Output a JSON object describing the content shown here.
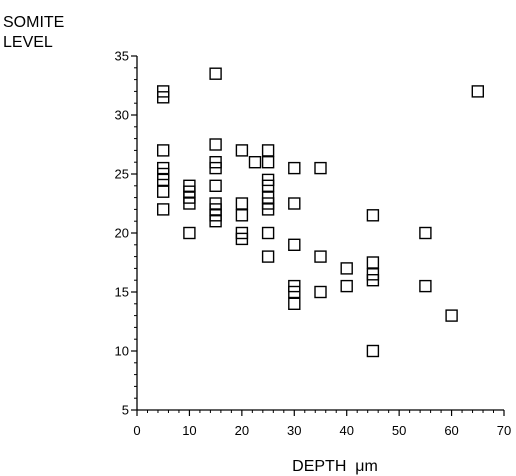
{
  "chart_data": {
    "type": "scatter",
    "ylabel_lines": [
      "SOMITE",
      "LEVEL"
    ],
    "xlabel": "DEPTH  μm",
    "xlim": [
      0,
      70
    ],
    "ylim": [
      5,
      35
    ],
    "x_ticks": [
      0,
      10,
      20,
      30,
      40,
      50,
      60,
      70
    ],
    "y_ticks": [
      5,
      10,
      15,
      20,
      25,
      30,
      35
    ],
    "x_tick_labels": [
      "0",
      "10",
      "20",
      "30",
      "40",
      "50",
      "60",
      "70"
    ],
    "y_tick_labels": [
      "5",
      "10",
      "15",
      "20",
      "25",
      "30",
      "35"
    ],
    "x_minor_step": 2,
    "y_minor_step": 1,
    "marker": "open-square",
    "series": [
      {
        "points": [
          [
            5,
            32
          ],
          [
            5,
            31.5
          ],
          [
            5,
            27
          ],
          [
            5,
            25.5
          ],
          [
            5,
            25
          ],
          [
            5,
            24.5
          ],
          [
            5,
            23.5
          ],
          [
            5,
            22
          ],
          [
            10,
            24
          ],
          [
            10,
            23.5
          ],
          [
            10,
            23
          ],
          [
            10,
            22.5
          ],
          [
            10,
            20
          ],
          [
            15,
            33.5
          ],
          [
            15,
            27.5
          ],
          [
            15,
            26
          ],
          [
            15,
            25.5
          ],
          [
            15,
            24
          ],
          [
            15,
            22.5
          ],
          [
            15,
            22
          ],
          [
            15,
            21.5
          ],
          [
            15,
            21
          ],
          [
            20,
            27
          ],
          [
            20,
            22.5
          ],
          [
            20,
            21.5
          ],
          [
            20,
            20
          ],
          [
            20,
            19.5
          ],
          [
            22.5,
            26
          ],
          [
            25,
            27
          ],
          [
            25,
            26
          ],
          [
            25,
            24.5
          ],
          [
            25,
            24
          ],
          [
            25,
            23
          ],
          [
            25,
            22.5
          ],
          [
            25,
            22
          ],
          [
            25,
            20
          ],
          [
            25,
            18
          ],
          [
            30,
            25.5
          ],
          [
            30,
            22.5
          ],
          [
            30,
            19
          ],
          [
            30,
            15.5
          ],
          [
            30,
            15
          ],
          [
            30,
            14
          ],
          [
            35,
            25.5
          ],
          [
            35,
            18
          ],
          [
            35,
            15
          ],
          [
            40,
            17
          ],
          [
            40,
            15.5
          ],
          [
            45,
            21.5
          ],
          [
            45,
            17.5
          ],
          [
            45,
            16.5
          ],
          [
            45,
            16
          ],
          [
            45,
            10
          ],
          [
            55,
            20
          ],
          [
            55,
            15.5
          ],
          [
            60,
            13
          ],
          [
            65,
            32
          ]
        ]
      }
    ]
  }
}
